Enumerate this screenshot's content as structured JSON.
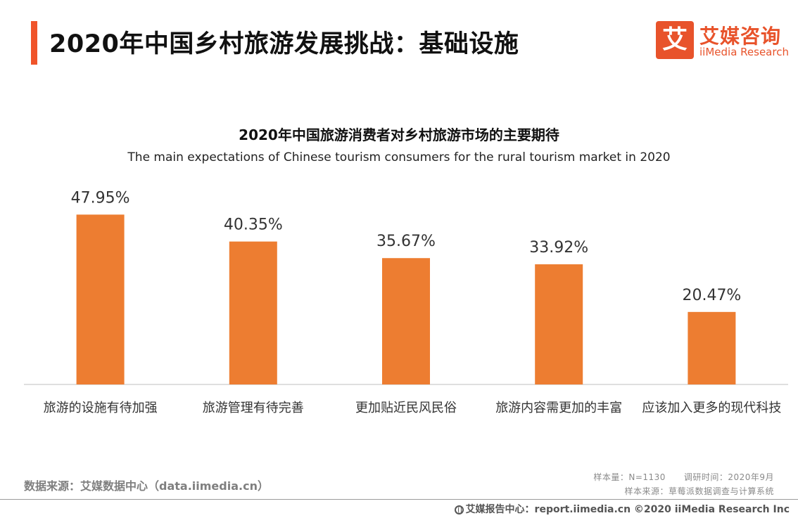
{
  "header": {
    "title": "2020年中国乡村旅游发展挑战：基础设施",
    "accent_color": "#f0542a"
  },
  "logo": {
    "icon_char": "艾",
    "name_cn": "艾媒咨询",
    "name_en": "iiMedia Research",
    "color": "#e8532b"
  },
  "chart_data": {
    "type": "bar",
    "title": "2020年中国旅游消费者对乡村旅游市场的主要期待",
    "subtitle": "The main expectations of Chinese tourism consumers for the rural tourism market in 2020",
    "categories": [
      "旅游的设施有待加强",
      "旅游管理有待完善",
      "更加贴近民风民俗",
      "旅游内容需更加的丰富",
      "应该加入更多的现代科技"
    ],
    "values": [
      47.95,
      40.35,
      35.67,
      33.92,
      20.47
    ],
    "value_labels": [
      "47.95%",
      "40.35%",
      "35.67%",
      "33.92%",
      "20.47%"
    ],
    "ylim": [
      0,
      50
    ],
    "bar_color": "#ed7d31",
    "grid": false,
    "legend": "none"
  },
  "source": {
    "label": "数据来源：艾媒数据中心（data.iimedia.cn）",
    "sample_size": "样本量：N=1130",
    "survey_time": "调研时间：2020年9月",
    "sample_source": "样本来源：草莓派数据调查与计算系统"
  },
  "footer": {
    "text": "艾媒报告中心：report.iimedia.cn  ©2020  iiMedia Research  Inc"
  }
}
